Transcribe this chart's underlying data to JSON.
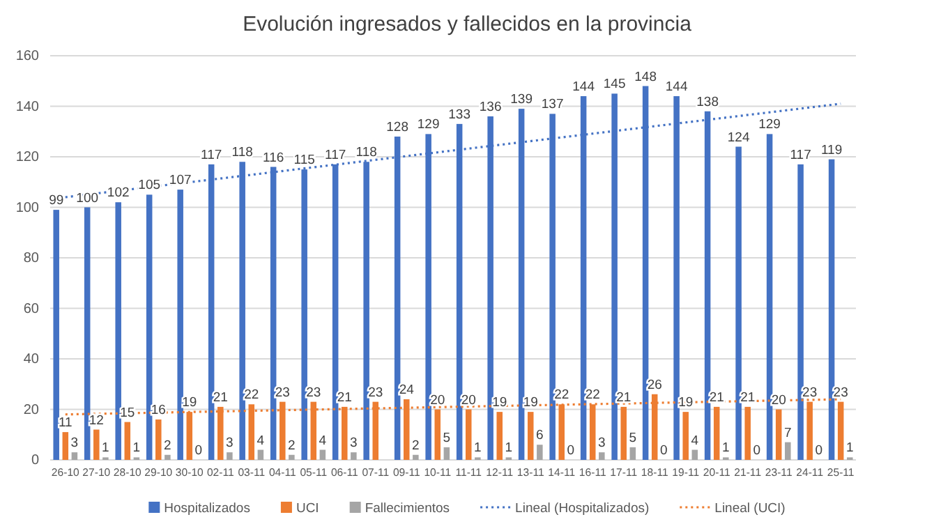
{
  "chart_data": {
    "type": "bar",
    "title": "Evolución ingresados y fallecidos en la provincia",
    "categories": [
      "26-10",
      "27-10",
      "28-10",
      "29-10",
      "30-10",
      "02-11",
      "03-11",
      "04-11",
      "05-11",
      "06-11",
      "07-11",
      "09-11",
      "10-11",
      "11-11",
      "12-11",
      "13-11",
      "14-11",
      "16-11",
      "17-11",
      "18-11",
      "19-11",
      "20-11",
      "21-11",
      "23-11",
      "24-11",
      "25-11"
    ],
    "series": [
      {
        "name": "Hospitalizados",
        "color": "#4472c4",
        "values": [
          99,
          100,
          102,
          105,
          107,
          117,
          118,
          116,
          115,
          117,
          118,
          128,
          129,
          133,
          136,
          139,
          137,
          144,
          145,
          148,
          144,
          138,
          124,
          129,
          117,
          119
        ],
        "value_labels": [
          "99",
          "100",
          "102",
          "105",
          "107",
          "117",
          "118",
          "116",
          "115",
          "117",
          "118",
          "128",
          "129",
          "133",
          "136",
          "139",
          "137",
          "144",
          "145",
          "148",
          "144",
          "138",
          "124",
          "129",
          "117",
          "119"
        ]
      },
      {
        "name": "UCI",
        "color": "#ed7d31",
        "values": [
          11,
          12,
          15,
          16,
          19,
          21,
          22,
          23,
          23,
          21,
          23,
          24,
          20,
          20,
          19,
          19,
          22,
          22,
          21,
          26,
          19,
          21,
          21,
          20,
          23,
          23
        ],
        "value_labels": [
          "11",
          "12",
          "15",
          "16",
          "19",
          "21",
          "22",
          "23",
          "23",
          "21",
          "23",
          "24",
          "20",
          "20",
          "19",
          "19",
          "22",
          "22",
          "21",
          "26",
          "19",
          "21",
          "21",
          "20",
          "23",
          "23"
        ]
      },
      {
        "name": "Fallecimientos",
        "color": "#a5a5a5",
        "values": [
          3,
          1,
          1,
          2,
          0,
          3,
          4,
          2,
          4,
          3,
          null,
          2,
          5,
          1,
          1,
          6,
          0,
          3,
          5,
          0,
          4,
          1,
          0,
          7,
          0,
          1
        ],
        "value_labels": [
          "3",
          "1",
          "1",
          "2",
          "0",
          "3",
          "4",
          "2",
          "4",
          "3",
          null,
          "2",
          "5",
          "1",
          "1",
          "6",
          "0",
          "3",
          "5",
          "0",
          "4",
          "1",
          "0",
          "7",
          "0",
          "1"
        ]
      },
      {
        "name": "Lineal (Hospitalizados)",
        "type": "line",
        "line_style": "dotted",
        "color": "#4472c4",
        "values": [
          104,
          null,
          null,
          null,
          null,
          null,
          null,
          null,
          null,
          null,
          null,
          null,
          null,
          null,
          null,
          null,
          null,
          null,
          null,
          null,
          null,
          null,
          null,
          null,
          null,
          141
        ]
      },
      {
        "name": "Lineal (UCI)",
        "type": "line",
        "line_style": "dotted",
        "color": "#ed7d31",
        "values": [
          18,
          null,
          null,
          null,
          null,
          null,
          null,
          null,
          null,
          null,
          null,
          null,
          null,
          null,
          null,
          null,
          null,
          null,
          null,
          null,
          null,
          null,
          null,
          null,
          null,
          24
        ]
      }
    ],
    "ylim": [
      0,
      160
    ],
    "yticks": [
      0,
      20,
      40,
      60,
      80,
      100,
      120,
      140,
      160
    ],
    "grid": "y",
    "legend": "bottom",
    "marker": "none"
  }
}
